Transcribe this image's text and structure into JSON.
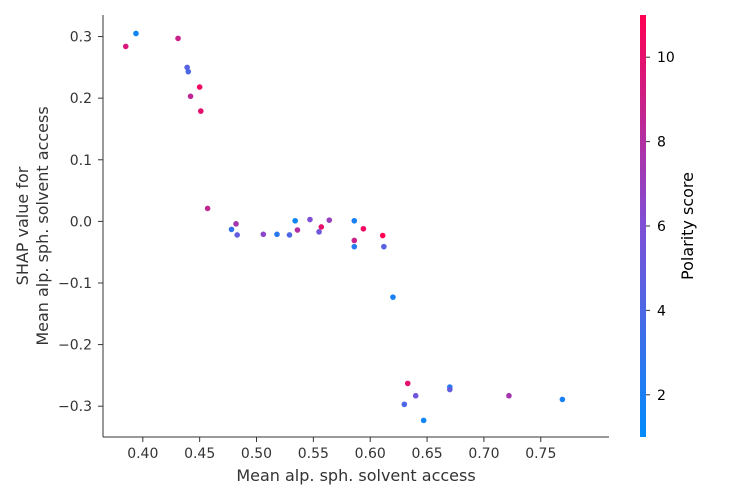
{
  "chart_data": {
    "type": "scatter",
    "title": "",
    "xlabel": "Mean alp. sph. solvent access",
    "ylabel_line1": "SHAP value for",
    "ylabel_line2": "Mean alp. sph. solvent access",
    "xlim": [
      0.365,
      0.81
    ],
    "ylim": [
      -0.35,
      0.335
    ],
    "xticks": [
      0.4,
      0.45,
      0.5,
      0.55,
      0.6,
      0.65,
      0.7,
      0.75
    ],
    "xtick_labels": [
      "0.40",
      "0.45",
      "0.50",
      "0.55",
      "0.60",
      "0.65",
      "0.70",
      "0.75"
    ],
    "yticks": [
      -0.3,
      -0.2,
      -0.1,
      0.0,
      0.1,
      0.2,
      0.3
    ],
    "ytick_labels": [
      "−0.3",
      "−0.2",
      "−0.1",
      "0.0",
      "0.1",
      "0.2",
      "0.3"
    ],
    "colorbar": {
      "label": "Polarity score",
      "min": 1,
      "max": 11,
      "ticks": [
        2,
        4,
        6,
        8,
        10
      ],
      "tick_labels": [
        "2",
        "4",
        "6",
        "8",
        "10"
      ],
      "colormap": [
        "#008bfb",
        "#ff0052"
      ]
    },
    "points": [
      {
        "x": 0.394,
        "y": 0.305,
        "c": 1.5
      },
      {
        "x": 0.385,
        "y": 0.284,
        "c": 9.5
      },
      {
        "x": 0.431,
        "y": 0.297,
        "c": 9.0
      },
      {
        "x": 0.439,
        "y": 0.25,
        "c": 4.5
      },
      {
        "x": 0.44,
        "y": 0.243,
        "c": 4.0
      },
      {
        "x": 0.442,
        "y": 0.203,
        "c": 8.5
      },
      {
        "x": 0.45,
        "y": 0.218,
        "c": 10.5
      },
      {
        "x": 0.451,
        "y": 0.179,
        "c": 10.0
      },
      {
        "x": 0.457,
        "y": 0.021,
        "c": 8.5
      },
      {
        "x": 0.478,
        "y": -0.013,
        "c": 3.0
      },
      {
        "x": 0.482,
        "y": -0.004,
        "c": 7.5
      },
      {
        "x": 0.483,
        "y": -0.022,
        "c": 5.0
      },
      {
        "x": 0.506,
        "y": -0.021,
        "c": 6.5
      },
      {
        "x": 0.518,
        "y": -0.021,
        "c": 2.5
      },
      {
        "x": 0.529,
        "y": -0.022,
        "c": 4.0
      },
      {
        "x": 0.534,
        "y": 0.001,
        "c": 1.5
      },
      {
        "x": 0.536,
        "y": -0.014,
        "c": 8.0
      },
      {
        "x": 0.547,
        "y": 0.003,
        "c": 6.0
      },
      {
        "x": 0.555,
        "y": -0.017,
        "c": 5.5
      },
      {
        "x": 0.557,
        "y": -0.009,
        "c": 10.0
      },
      {
        "x": 0.564,
        "y": 0.002,
        "c": 7.0
      },
      {
        "x": 0.586,
        "y": 0.001,
        "c": 2.0
      },
      {
        "x": 0.586,
        "y": -0.031,
        "c": 9.0
      },
      {
        "x": 0.586,
        "y": -0.041,
        "c": 2.5
      },
      {
        "x": 0.594,
        "y": -0.012,
        "c": 10.5
      },
      {
        "x": 0.611,
        "y": -0.023,
        "c": 11.0
      },
      {
        "x": 0.612,
        "y": -0.041,
        "c": 4.5
      },
      {
        "x": 0.62,
        "y": -0.123,
        "c": 2.0
      },
      {
        "x": 0.63,
        "y": -0.297,
        "c": 4.0
      },
      {
        "x": 0.633,
        "y": -0.263,
        "c": 10.0
      },
      {
        "x": 0.64,
        "y": -0.283,
        "c": 5.5
      },
      {
        "x": 0.647,
        "y": -0.323,
        "c": 1.5
      },
      {
        "x": 0.67,
        "y": -0.269,
        "c": 2.5
      },
      {
        "x": 0.67,
        "y": -0.273,
        "c": 5.0
      },
      {
        "x": 0.722,
        "y": -0.283,
        "c": 7.5
      },
      {
        "x": 0.769,
        "y": -0.289,
        "c": 2.0
      }
    ]
  }
}
